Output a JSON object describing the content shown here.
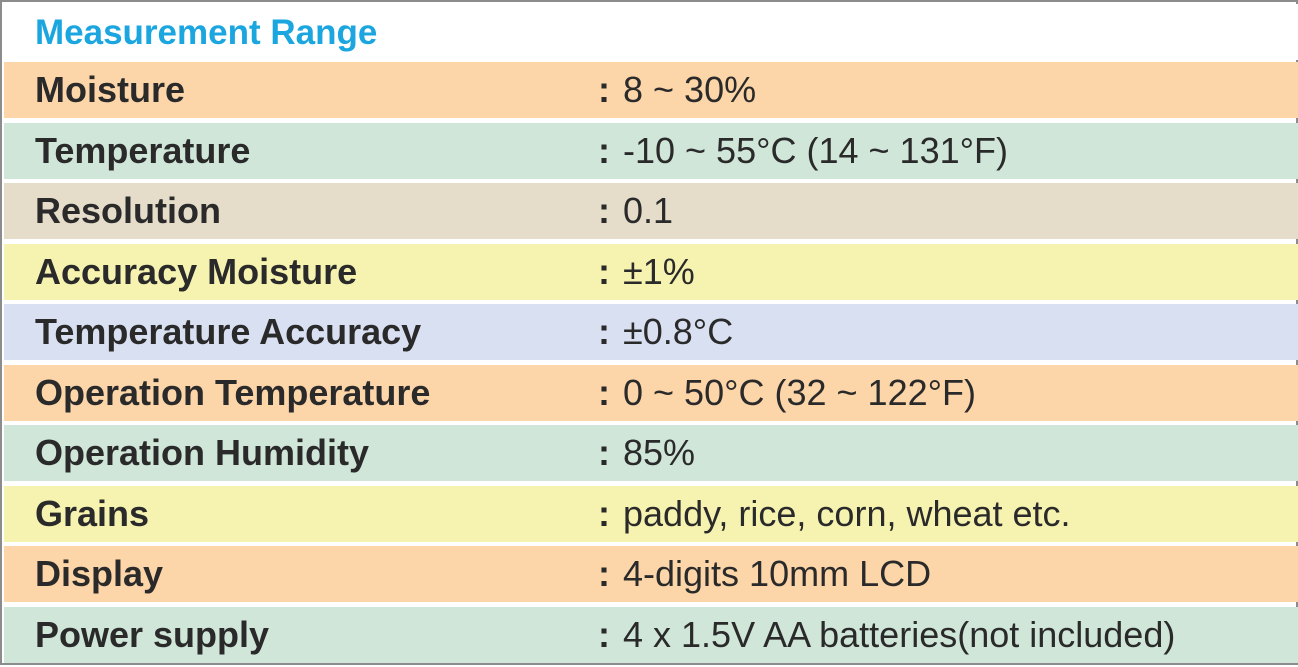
{
  "header": {
    "title": "Measurement Range"
  },
  "colors": {
    "title": "#1ba6e0",
    "text": "#2a2a2a",
    "border": "#8c8c8c",
    "orange": "#fcd5a8",
    "green": "#cfe6d9",
    "beige": "#e5ddca",
    "yellow": "#f6f2b0",
    "blue": "#d9e0f1"
  },
  "rows": [
    {
      "label": "Moisture",
      "separator": ":",
      "value": "8 ~ 30%",
      "color": "#fcd5a8"
    },
    {
      "label": "Temperature",
      "separator": ":",
      "value": "-10 ~ 55°C (14 ~ 131°F)",
      "color": "#cfe6d9"
    },
    {
      "label": "Resolution",
      "separator": ":",
      "value": "0.1",
      "color": "#e5ddca"
    },
    {
      "label": "Accuracy Moisture",
      "separator": ":",
      "value": "±1%",
      "color": "#f6f2b0"
    },
    {
      "label": "Temperature Accuracy",
      "separator": ":",
      "value": "±0.8°C",
      "color": "#d9e0f1"
    },
    {
      "label": "Operation Temperature",
      "separator": ":",
      "value": "0 ~ 50°C (32 ~ 122°F)",
      "color": "#fcd5a8"
    },
    {
      "label": "Operation Humidity",
      "separator": ":",
      "value": "85%",
      "color": "#cfe6d9"
    },
    {
      "label": "Grains",
      "separator": ":",
      "value": "paddy, rice, corn, wheat etc.",
      "color": "#f6f2b0"
    },
    {
      "label": "Display",
      "separator": ":",
      "value": "4-digits 10mm LCD",
      "color": "#fcd5a8"
    },
    {
      "label": "Power supply",
      "separator": ":",
      "value": "4 x 1.5V AA batteries(not included)",
      "color": "#cfe6d9"
    }
  ]
}
